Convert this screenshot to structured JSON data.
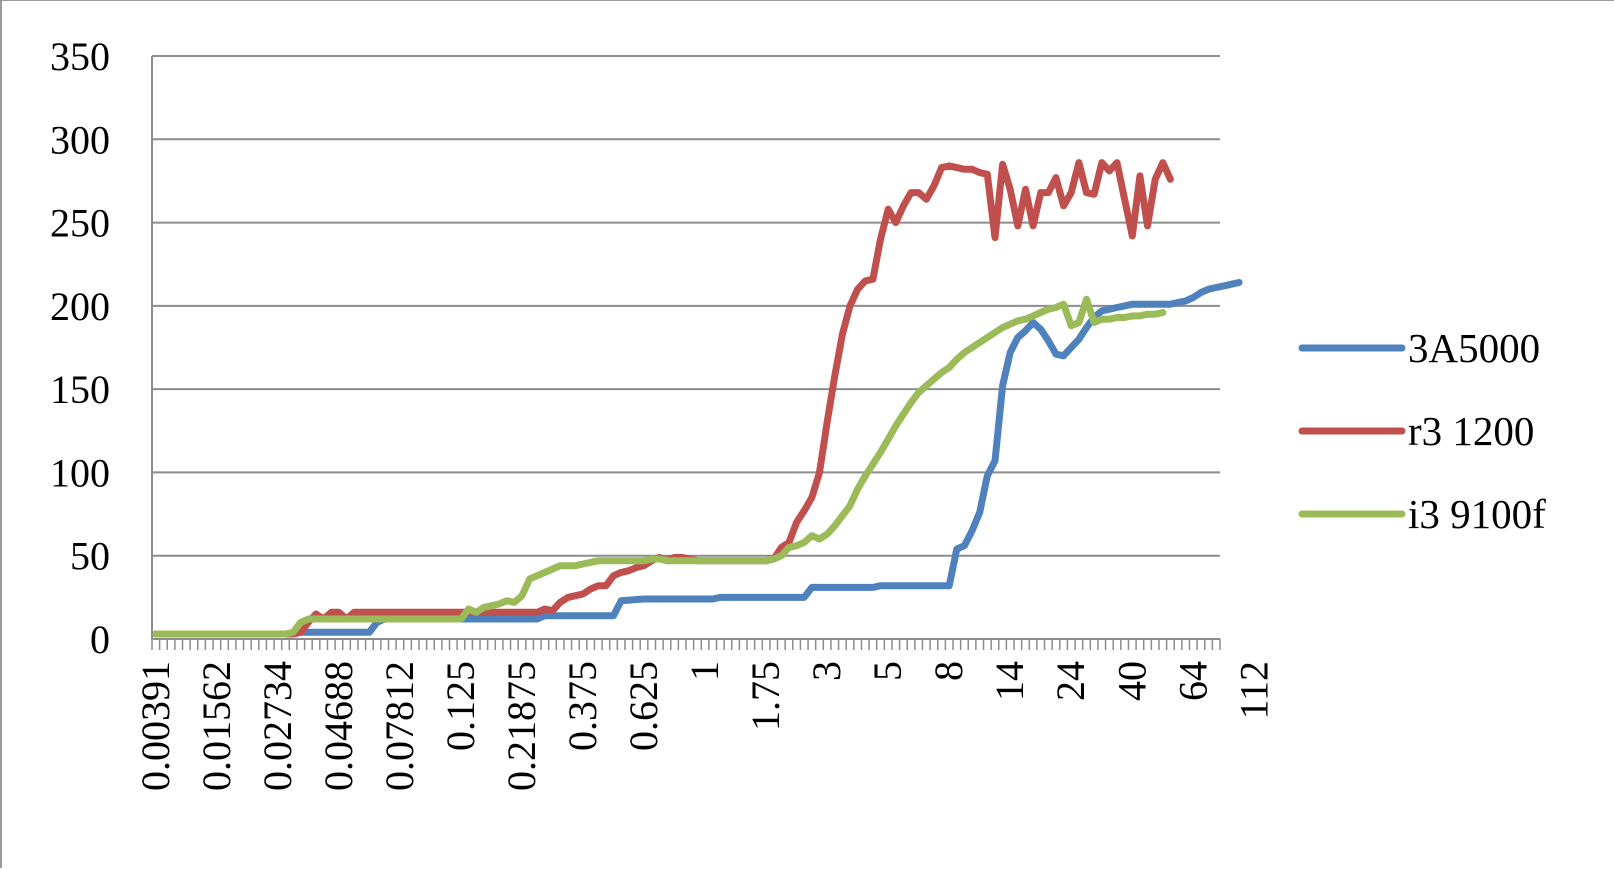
{
  "chart_data": {
    "type": "line",
    "title": "",
    "xlabel": "",
    "ylabel": "",
    "ylim": [
      0,
      350
    ],
    "yticks": [
      0,
      50,
      100,
      150,
      200,
      250,
      300,
      350
    ],
    "grid": true,
    "legend": "right",
    "point_count": 140,
    "x_tick_labels": [
      {
        "index": 0,
        "label": "0.00391"
      },
      {
        "index": 8,
        "label": "0.01562"
      },
      {
        "index": 16,
        "label": "0.02734"
      },
      {
        "index": 24,
        "label": "0.04688"
      },
      {
        "index": 32,
        "label": "0.07812"
      },
      {
        "index": 40,
        "label": "0.125"
      },
      {
        "index": 48,
        "label": "0.21875"
      },
      {
        "index": 56,
        "label": "0.375"
      },
      {
        "index": 64,
        "label": "0.625"
      },
      {
        "index": 72,
        "label": "1"
      },
      {
        "index": 80,
        "label": "1.75"
      },
      {
        "index": 88,
        "label": "3"
      },
      {
        "index": 96,
        "label": "5"
      },
      {
        "index": 104,
        "label": "8"
      },
      {
        "index": 112,
        "label": "14"
      },
      {
        "index": 120,
        "label": "24"
      },
      {
        "index": 128,
        "label": "40"
      },
      {
        "index": 136,
        "label": "64"
      },
      {
        "index": 144,
        "label": "112"
      }
    ],
    "series": [
      {
        "name": "3A5000",
        "color": "#4f81bd",
        "points": [
          [
            0,
            3
          ],
          [
            18,
            3
          ],
          [
            19,
            4
          ],
          [
            28,
            4
          ],
          [
            29,
            10
          ],
          [
            30,
            12
          ],
          [
            50,
            12
          ],
          [
            51,
            14
          ],
          [
            60,
            14
          ],
          [
            61,
            23
          ],
          [
            64,
            24
          ],
          [
            73,
            24
          ],
          [
            74,
            25
          ],
          [
            85,
            25
          ],
          [
            86,
            31
          ],
          [
            94,
            31
          ],
          [
            95,
            32
          ],
          [
            104,
            32
          ],
          [
            105,
            54
          ],
          [
            106,
            56
          ],
          [
            107,
            65
          ],
          [
            108,
            76
          ],
          [
            109,
            98
          ],
          [
            110,
            107
          ],
          [
            111,
            152
          ],
          [
            112,
            172
          ],
          [
            113,
            181
          ],
          [
            114,
            185
          ],
          [
            115,
            190
          ],
          [
            116,
            186
          ],
          [
            117,
            179
          ],
          [
            118,
            171
          ],
          [
            119,
            170
          ],
          [
            120,
            175
          ],
          [
            121,
            180
          ],
          [
            122,
            187
          ],
          [
            123,
            193
          ],
          [
            124,
            197
          ],
          [
            125,
            198
          ],
          [
            126,
            199
          ],
          [
            127,
            200
          ],
          [
            128,
            201
          ],
          [
            129,
            201
          ],
          [
            130,
            201
          ],
          [
            131,
            201
          ],
          [
            132,
            201
          ],
          [
            133,
            201
          ],
          [
            134,
            202
          ],
          [
            135,
            203
          ],
          [
            136,
            205
          ],
          [
            137,
            208
          ],
          [
            138,
            210
          ],
          [
            139,
            211
          ],
          [
            140,
            212
          ],
          [
            141,
            213
          ],
          [
            142,
            214
          ]
        ]
      },
      {
        "name": "r3 1200",
        "color": "#c0504d",
        "points": [
          [
            0,
            3
          ],
          [
            18,
            3
          ],
          [
            19,
            4
          ],
          [
            20,
            10
          ],
          [
            21,
            15
          ],
          [
            22,
            12
          ],
          [
            23,
            16
          ],
          [
            24,
            16
          ],
          [
            25,
            12
          ],
          [
            26,
            16
          ],
          [
            50,
            16
          ],
          [
            51,
            18
          ],
          [
            52,
            17
          ],
          [
            53,
            22
          ],
          [
            54,
            25
          ],
          [
            55,
            26
          ],
          [
            56,
            27
          ],
          [
            57,
            30
          ],
          [
            58,
            32
          ],
          [
            59,
            32
          ],
          [
            60,
            38
          ],
          [
            61,
            40
          ],
          [
            62,
            41
          ],
          [
            63,
            43
          ],
          [
            64,
            44
          ],
          [
            65,
            47
          ],
          [
            66,
            49
          ],
          [
            67,
            47
          ],
          [
            68,
            49
          ],
          [
            69,
            49
          ],
          [
            70,
            48
          ],
          [
            71,
            47
          ],
          [
            80,
            47
          ],
          [
            81,
            48
          ],
          [
            82,
            55
          ],
          [
            83,
            58
          ],
          [
            84,
            70
          ],
          [
            85,
            77
          ],
          [
            86,
            85
          ],
          [
            87,
            100
          ],
          [
            88,
            130
          ],
          [
            89,
            158
          ],
          [
            90,
            183
          ],
          [
            91,
            200
          ],
          [
            92,
            210
          ],
          [
            93,
            215
          ],
          [
            94,
            216
          ],
          [
            95,
            240
          ],
          [
            96,
            258
          ],
          [
            97,
            250
          ],
          [
            98,
            260
          ],
          [
            99,
            268
          ],
          [
            100,
            268
          ],
          [
            101,
            264
          ],
          [
            102,
            272
          ],
          [
            103,
            283
          ],
          [
            104,
            284
          ],
          [
            105,
            283
          ],
          [
            106,
            282
          ],
          [
            107,
            282
          ],
          [
            108,
            280
          ],
          [
            109,
            279
          ],
          [
            110,
            241
          ],
          [
            111,
            285
          ],
          [
            112,
            270
          ],
          [
            113,
            248
          ],
          [
            114,
            270
          ],
          [
            115,
            248
          ],
          [
            116,
            268
          ],
          [
            117,
            268
          ],
          [
            118,
            277
          ],
          [
            119,
            260
          ],
          [
            120,
            268
          ],
          [
            121,
            286
          ],
          [
            122,
            268
          ],
          [
            123,
            267
          ],
          [
            124,
            286
          ],
          [
            125,
            281
          ],
          [
            126,
            286
          ],
          [
            127,
            264
          ],
          [
            128,
            242
          ],
          [
            129,
            278
          ],
          [
            130,
            248
          ],
          [
            131,
            276
          ],
          [
            132,
            286
          ],
          [
            133,
            276
          ]
        ]
      },
      {
        "name": "i3 9100f",
        "color": "#9bbb59",
        "points": [
          [
            0,
            3
          ],
          [
            17,
            3
          ],
          [
            18,
            4
          ],
          [
            19,
            10
          ],
          [
            20,
            12
          ],
          [
            40,
            12
          ],
          [
            41,
            18
          ],
          [
            42,
            16
          ],
          [
            43,
            19
          ],
          [
            44,
            20
          ],
          [
            45,
            21
          ],
          [
            46,
            23
          ],
          [
            47,
            22
          ],
          [
            48,
            26
          ],
          [
            49,
            36
          ],
          [
            50,
            38
          ],
          [
            51,
            40
          ],
          [
            52,
            42
          ],
          [
            53,
            44
          ],
          [
            54,
            44
          ],
          [
            55,
            44
          ],
          [
            56,
            45
          ],
          [
            57,
            46
          ],
          [
            58,
            47
          ],
          [
            64,
            47
          ],
          [
            65,
            48
          ],
          [
            66,
            48
          ],
          [
            67,
            47
          ],
          [
            80,
            47
          ],
          [
            81,
            48
          ],
          [
            82,
            50
          ],
          [
            83,
            55
          ],
          [
            84,
            56
          ],
          [
            85,
            58
          ],
          [
            86,
            62
          ],
          [
            87,
            60
          ],
          [
            88,
            63
          ],
          [
            89,
            68
          ],
          [
            90,
            74
          ],
          [
            91,
            80
          ],
          [
            92,
            90
          ],
          [
            93,
            98
          ],
          [
            94,
            105
          ],
          [
            95,
            112
          ],
          [
            96,
            120
          ],
          [
            97,
            128
          ],
          [
            98,
            135
          ],
          [
            99,
            142
          ],
          [
            100,
            148
          ],
          [
            101,
            152
          ],
          [
            102,
            156
          ],
          [
            103,
            160
          ],
          [
            104,
            163
          ],
          [
            105,
            168
          ],
          [
            106,
            172
          ],
          [
            107,
            175
          ],
          [
            108,
            178
          ],
          [
            109,
            181
          ],
          [
            110,
            184
          ],
          [
            111,
            187
          ],
          [
            112,
            189
          ],
          [
            113,
            191
          ],
          [
            114,
            192
          ],
          [
            115,
            194
          ],
          [
            116,
            196
          ],
          [
            117,
            198
          ],
          [
            118,
            199
          ],
          [
            119,
            201
          ],
          [
            120,
            188
          ],
          [
            121,
            190
          ],
          [
            122,
            204
          ],
          [
            123,
            190
          ],
          [
            124,
            192
          ],
          [
            125,
            192
          ],
          [
            126,
            193
          ],
          [
            127,
            193
          ],
          [
            128,
            194
          ],
          [
            129,
            194
          ],
          [
            130,
            195
          ],
          [
            131,
            195
          ],
          [
            132,
            196
          ]
        ]
      }
    ]
  }
}
